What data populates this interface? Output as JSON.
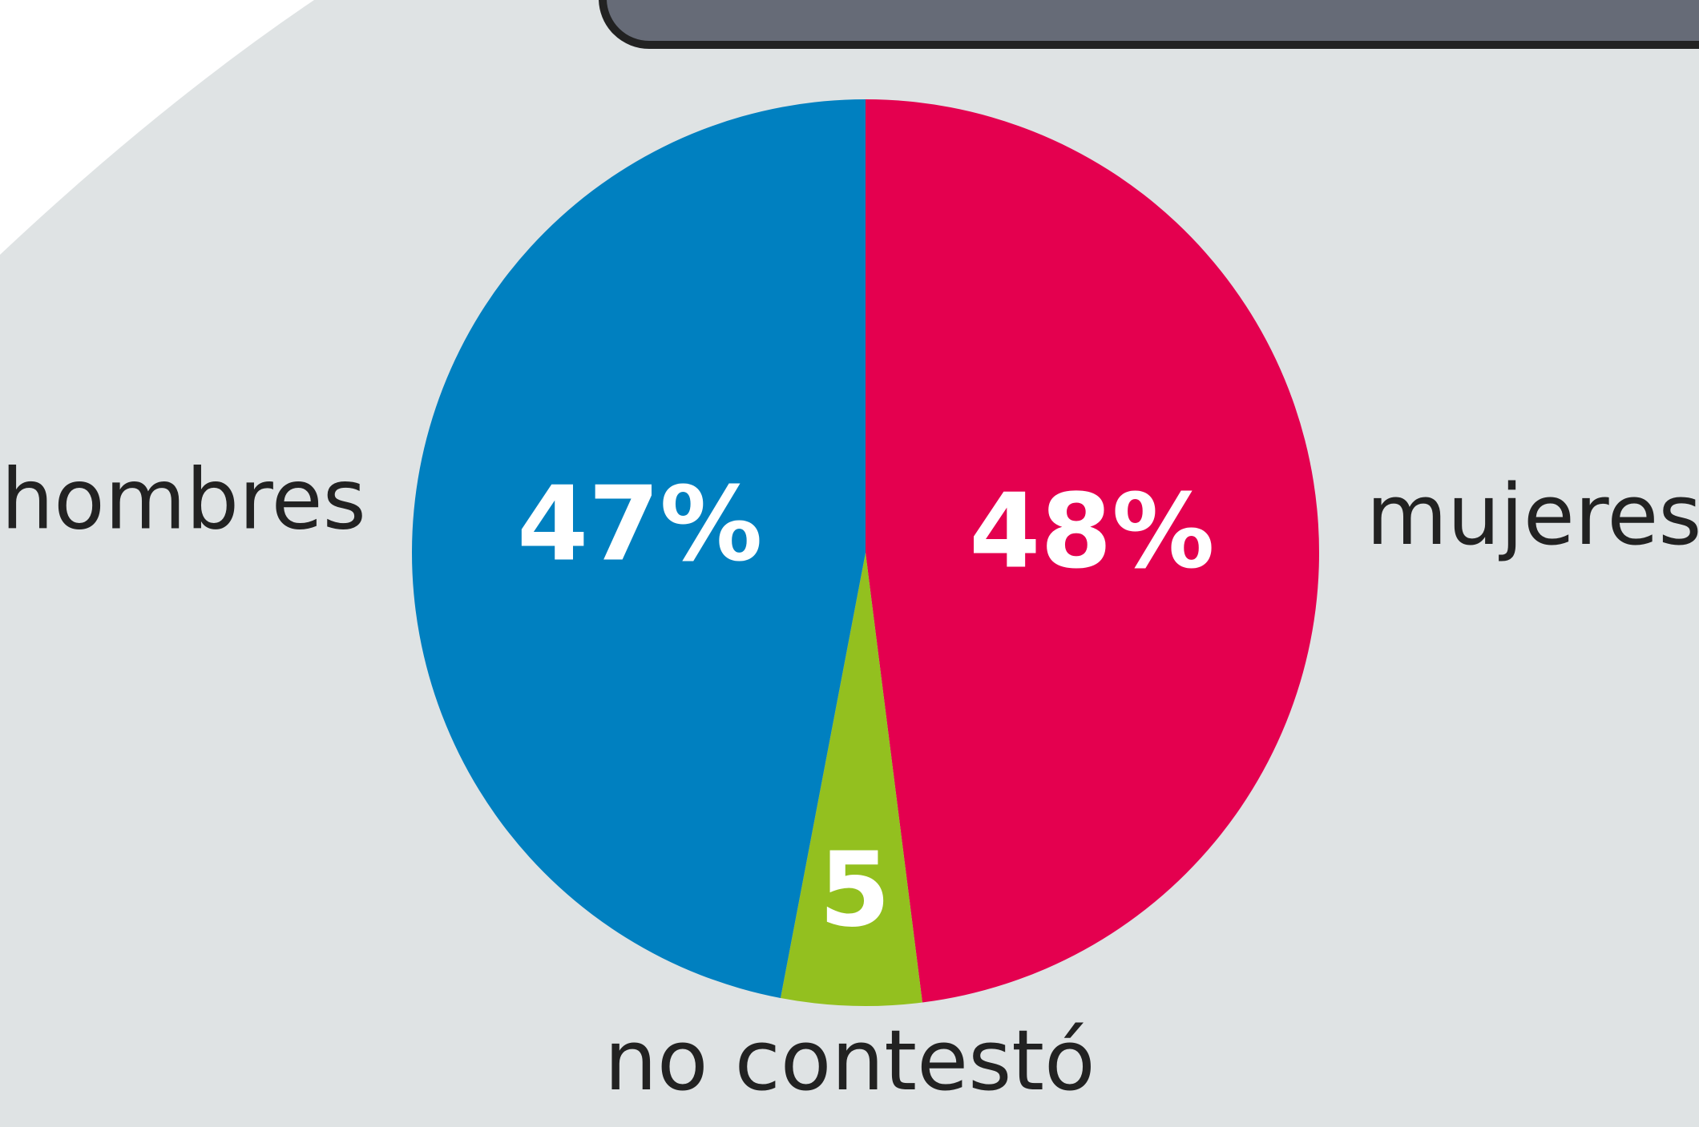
{
  "chart_data": {
    "type": "pie",
    "categories": [
      "mujeres",
      "no contestó",
      "hombres"
    ],
    "values": [
      48,
      5,
      47
    ],
    "value_labels": [
      "48%",
      "5",
      "47%"
    ],
    "colors": [
      "#e4004f",
      "#93c01f",
      "#0080c0"
    ]
  }
}
